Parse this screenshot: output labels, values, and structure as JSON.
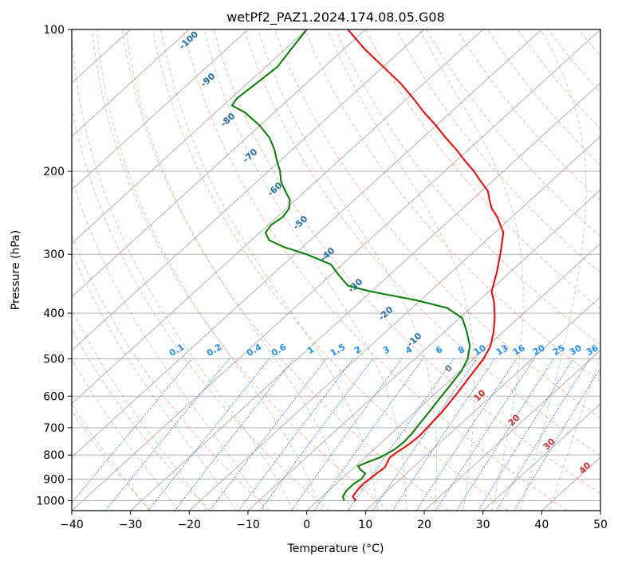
{
  "chart_data": {
    "type": "line",
    "title": "wetPf2_PAZ1.2024.174.08.05.G08",
    "xlabel": "Temperature (°C)",
    "ylabel": "Pressure (hPa)",
    "xlim": [
      -40,
      50
    ],
    "ylim": [
      1050,
      100
    ],
    "y_scale": "log",
    "grid": true,
    "x_ticks": [
      -40,
      -30,
      -20,
      -10,
      0,
      10,
      20,
      30,
      40,
      50
    ],
    "y_ticks": [
      100,
      200,
      300,
      400,
      500,
      600,
      700,
      800,
      900,
      1000
    ],
    "skew": true,
    "series": [
      {
        "color": "#ff0000",
        "role": "temperature",
        "points": [
          [
            6.5,
            1000
          ],
          [
            5.2,
            980
          ],
          [
            4.8,
            950
          ],
          [
            4.6,
            920
          ],
          [
            4.8,
            900
          ],
          [
            5.0,
            870
          ],
          [
            5.2,
            850
          ],
          [
            4.7,
            830
          ],
          [
            4.2,
            810
          ],
          [
            4.4,
            790
          ],
          [
            5.0,
            760
          ],
          [
            5.2,
            730
          ],
          [
            5.0,
            700
          ],
          [
            4.6,
            650
          ],
          [
            3.8,
            600
          ],
          [
            2.8,
            550
          ],
          [
            1.7,
            500
          ],
          [
            0.5,
            470
          ],
          [
            -1.5,
            440
          ],
          [
            -4,
            410
          ],
          [
            -7,
            380
          ],
          [
            -9.5,
            360
          ],
          [
            -12,
            330
          ],
          [
            -15,
            300
          ],
          [
            -18.5,
            270
          ],
          [
            -22.5,
            250
          ],
          [
            -25,
            240
          ],
          [
            -27,
            230
          ],
          [
            -29,
            220
          ],
          [
            -32,
            210
          ],
          [
            -35,
            200
          ],
          [
            -38.5,
            190
          ],
          [
            -42,
            180
          ],
          [
            -46,
            170
          ],
          [
            -50,
            160
          ],
          [
            -54.5,
            150
          ],
          [
            -59,
            140
          ],
          [
            -64,
            130
          ],
          [
            -70,
            120
          ],
          [
            -76.5,
            110
          ],
          [
            -83,
            100
          ]
        ]
      },
      {
        "color": "#008000",
        "role": "dewpoint",
        "points": [
          [
            4.5,
            1000
          ],
          [
            3.5,
            980
          ],
          [
            3.0,
            950
          ],
          [
            3.0,
            920
          ],
          [
            3.4,
            900
          ],
          [
            3.0,
            875
          ],
          [
            1.5,
            860
          ],
          [
            0.4,
            845
          ],
          [
            1.2,
            830
          ],
          [
            2.5,
            810
          ],
          [
            3.5,
            780
          ],
          [
            3.7,
            750
          ],
          [
            3.5,
            720
          ],
          [
            3.0,
            690
          ],
          [
            2.4,
            650
          ],
          [
            1.7,
            610
          ],
          [
            1.0,
            570
          ],
          [
            0.2,
            530
          ],
          [
            -1.0,
            500
          ],
          [
            -3,
            470
          ],
          [
            -6,
            440
          ],
          [
            -9.5,
            410
          ],
          [
            -14,
            390
          ],
          [
            -21,
            375
          ],
          [
            -30,
            360
          ],
          [
            -35,
            350
          ],
          [
            -37,
            340
          ],
          [
            -39,
            330
          ],
          [
            -42,
            315
          ],
          [
            -48,
            300
          ],
          [
            -53,
            290
          ],
          [
            -57,
            280
          ],
          [
            -59,
            270
          ],
          [
            -59.5,
            260
          ],
          [
            -59,
            250
          ],
          [
            -59.5,
            240
          ],
          [
            -61,
            230
          ],
          [
            -63.5,
            220
          ],
          [
            -66,
            210
          ],
          [
            -68,
            200
          ],
          [
            -70.5,
            190
          ],
          [
            -73,
            180
          ],
          [
            -76,
            170
          ],
          [
            -80,
            160
          ],
          [
            -85,
            150
          ],
          [
            -88.5,
            145
          ],
          [
            -89,
            140
          ],
          [
            -88.5,
            130
          ],
          [
            -88,
            120
          ],
          [
            -89,
            110
          ],
          [
            -90,
            100
          ]
        ]
      }
    ],
    "dry_adiabat_labels": [
      "-100",
      "-90",
      "-80",
      "-70",
      "-60",
      "-50",
      "-40",
      "-30",
      "-20",
      "-10"
    ],
    "mixing_ratio_labels": [
      "0.1",
      "0.2",
      "0.4",
      "0.6",
      "1",
      "1.5",
      "2",
      "3",
      "4",
      "6",
      "8",
      "10",
      "13",
      "16",
      "20",
      "25",
      "30",
      "36"
    ],
    "moist_adiabat_labels": [
      "0",
      "10",
      "20",
      "30",
      "40"
    ]
  }
}
